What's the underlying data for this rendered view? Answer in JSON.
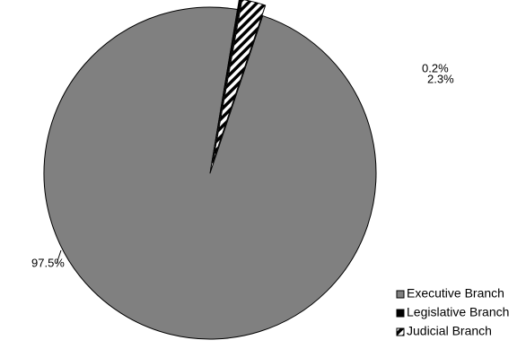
{
  "chart_data": {
    "type": "pie",
    "title": "",
    "legend_position": "bottom-right",
    "slices": [
      {
        "label": "Executive Branch",
        "value": 97.5,
        "value_label": "97.5%",
        "color": "#808080",
        "pattern": "solid"
      },
      {
        "label": "Legislative Branch",
        "value": 0.2,
        "value_label": "0.2%",
        "color": "#000000",
        "pattern": "solid"
      },
      {
        "label": "Judicial Branch",
        "value": 2.3,
        "value_label": "2.3%",
        "color": "#000000",
        "pattern": "diagonal-stripes"
      }
    ]
  }
}
